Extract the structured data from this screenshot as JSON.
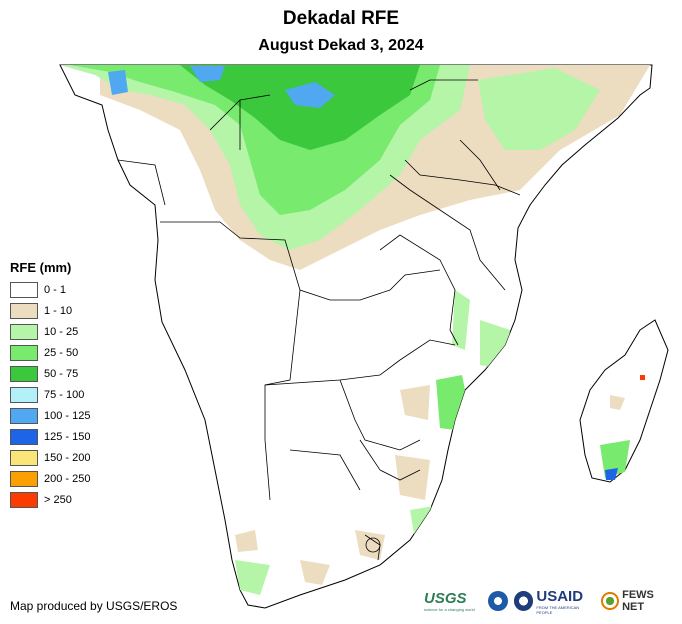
{
  "title": "Dekadal RFE",
  "subtitle": "August Dekad 3, 2024",
  "legend": {
    "title": "RFE (mm)",
    "items": [
      {
        "label": "0 - 1",
        "color": "#ffffff"
      },
      {
        "label": "1 - 10",
        "color": "#ecdcc0"
      },
      {
        "label": "10 - 25",
        "color": "#b4f5a8"
      },
      {
        "label": "25 - 50",
        "color": "#78ea6e"
      },
      {
        "label": "50 - 75",
        "color": "#3cc83c"
      },
      {
        "label": "75 - 100",
        "color": "#b4f0f8"
      },
      {
        "label": "100 - 125",
        "color": "#50a8f0"
      },
      {
        "label": "125 - 150",
        "color": "#1e64e6"
      },
      {
        "label": "150 - 200",
        "color": "#fae678"
      },
      {
        "label": "200 - 250",
        "color": "#faa000"
      },
      {
        "label": "> 250",
        "color": "#fa3c00"
      }
    ]
  },
  "credit": "Map produced by USGS/EROS",
  "logos": {
    "usgs": "USGS",
    "usgs_tagline": "science for a changing world",
    "usaid": "USAID",
    "usaid_tagline": "FROM THE AMERICAN PEOPLE",
    "fews": "FEWS NET"
  }
}
